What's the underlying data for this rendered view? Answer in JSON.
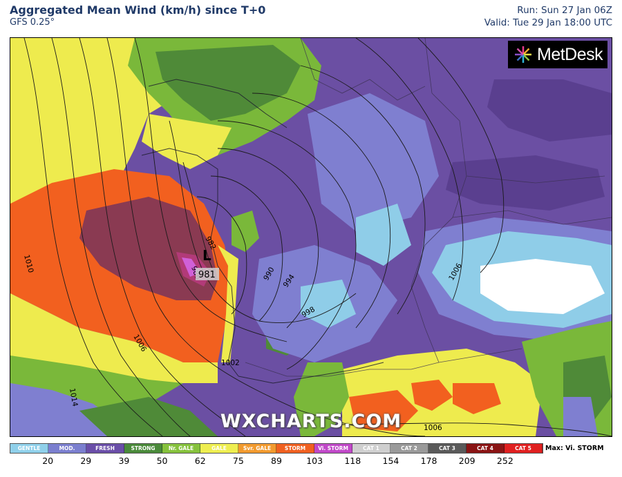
{
  "header": {
    "title": "Aggregated Mean Wind (km/h) since T+0",
    "subtitle": "GFS 0.25°",
    "run": "Run: Sun 27 Jan 06Z",
    "valid": "Valid: Tue 29 Jan 18:00 UTC"
  },
  "logo": {
    "text": "MetDesk",
    "icon": "metdesk-starburst-icon"
  },
  "watermark": "WXCHARTS.COM",
  "low_pressure": {
    "symbol": "L",
    "value": "981"
  },
  "isobar_labels": [
    "1010",
    "1006",
    "1002",
    "994",
    "998",
    "990",
    "986",
    "982",
    "1006",
    "1006",
    "1014"
  ],
  "legend": {
    "categories": [
      {
        "label": "GENTLE",
        "color": "#8fd0ea"
      },
      {
        "label": "MOD.",
        "color": "#7b7fcf"
      },
      {
        "label": "FRESH",
        "color": "#6a4ea8"
      },
      {
        "label": "STRONG",
        "color": "#4a8a3a"
      },
      {
        "label": "Nr. GALE",
        "color": "#86c23c"
      },
      {
        "label": "GALE",
        "color": "#eeee50"
      },
      {
        "label": "Svr. GALE",
        "color": "#f29a2e"
      },
      {
        "label": "STORM",
        "color": "#f06020"
      },
      {
        "label": "Vi. STORM",
        "color": "#c048c8"
      },
      {
        "label": "CAT 1",
        "color": "#cfcfcf"
      },
      {
        "label": "CAT 2",
        "color": "#9a9a9a"
      },
      {
        "label": "CAT 3",
        "color": "#5a5a5a"
      },
      {
        "label": "CAT 4",
        "color": "#8a1414"
      },
      {
        "label": "CAT 5",
        "color": "#e02020"
      }
    ],
    "max_text": "Max: Vi. STORM",
    "ticks": [
      "20",
      "29",
      "39",
      "50",
      "62",
      "75",
      "89",
      "103",
      "118",
      "154",
      "178",
      "209",
      "252"
    ]
  },
  "colors": {
    "title_blue": "#203a68",
    "sea_orange": "#f2601f",
    "storm_maroon": "#8a3a52",
    "yellow": "#eeeb4e",
    "green": "#7ab83a",
    "purple": "#6a4aa0",
    "lavender": "#7f7fd0",
    "light_blue": "#8fcde8"
  }
}
